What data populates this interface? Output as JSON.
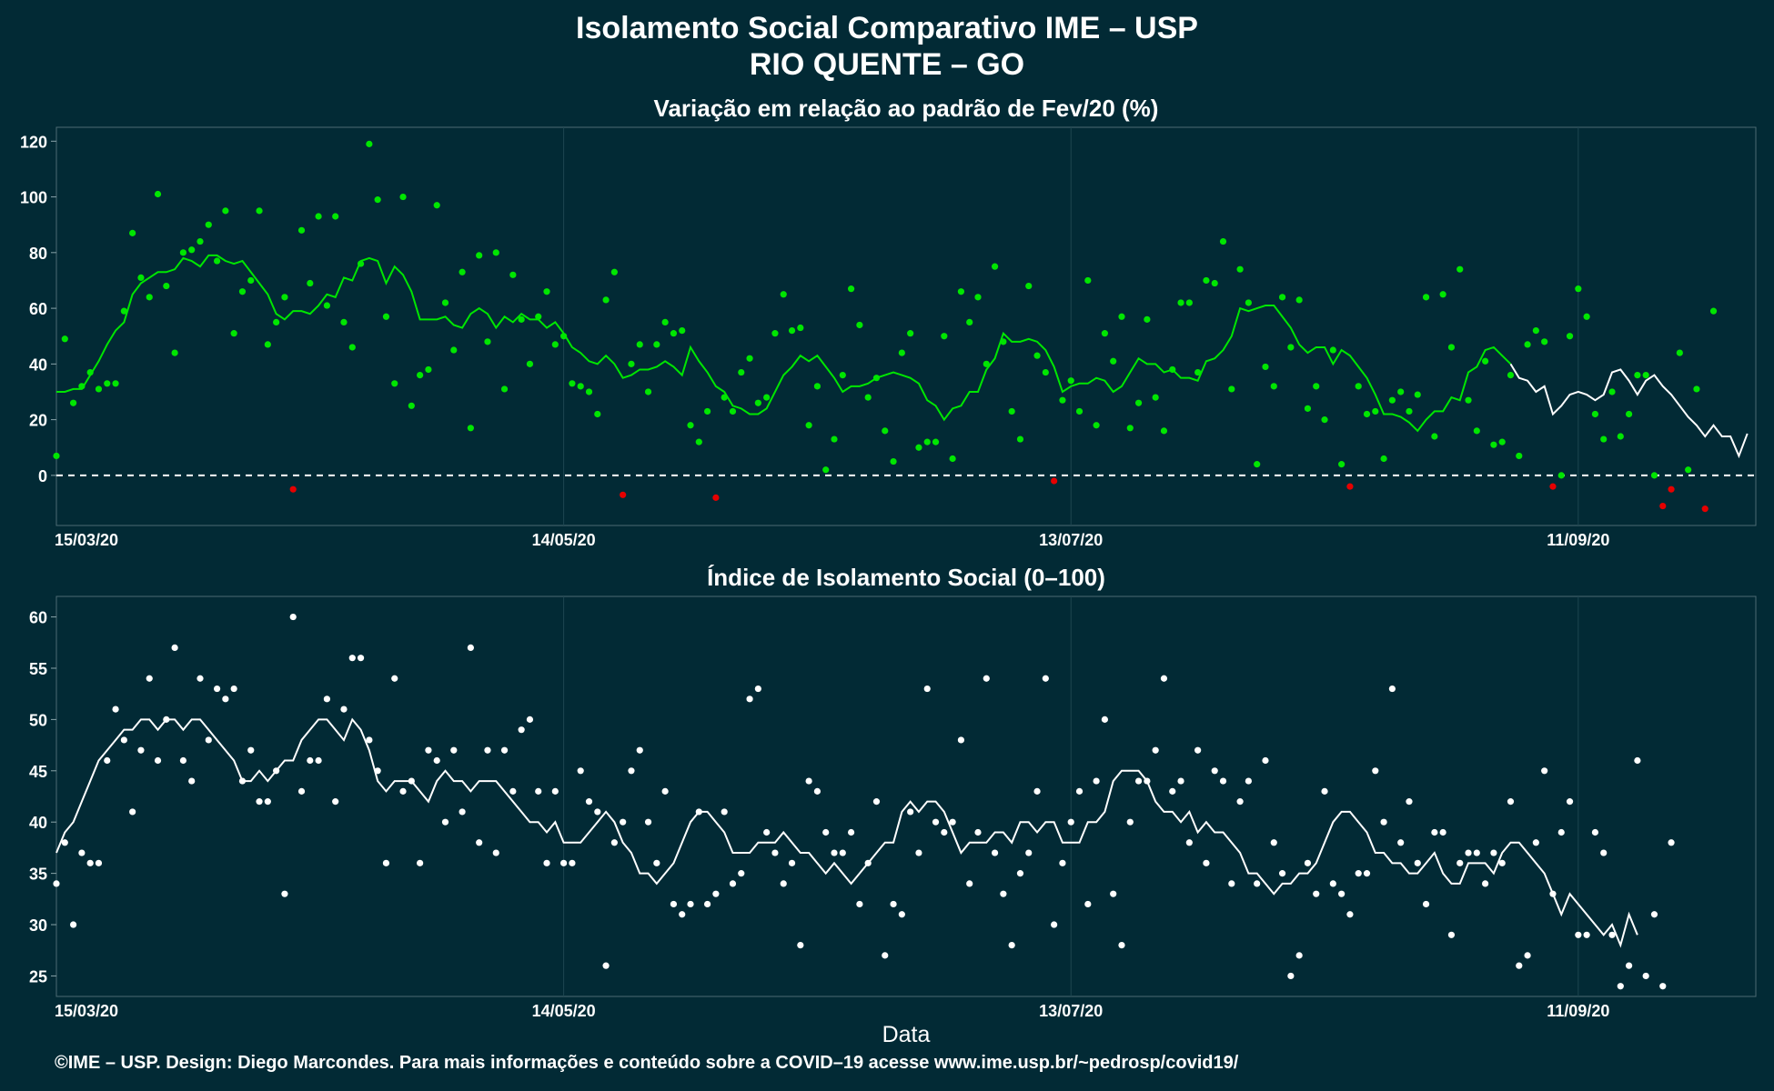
{
  "title_line1": "Isolamento Social Comparativo IME – USP",
  "title_line2": "RIO QUENTE – GO",
  "credit": "©IME – USP. Design: Diego Marcondes. Para mais informações e conteúdo sobre a COVID–19 acesse www.ime.usp.br/~pedrosp/covid19/",
  "chart_data": [
    {
      "type": "scatter",
      "title": "Variação em relação ao padrão de Fev/20 (%)",
      "xlabel": "",
      "ylabel": "",
      "x_range": [
        "2020-03-15",
        "2020-10-02"
      ],
      "x_tick_labels": [
        "15/03/20",
        "14/05/20",
        "13/07/20",
        "11/09/20"
      ],
      "ylim": [
        -18,
        125
      ],
      "y_ticks": [
        0,
        20,
        40,
        60,
        80,
        100,
        120
      ],
      "reference_line": 0,
      "grid": true,
      "point_color_positive": "#00e600",
      "point_color_negative": "#e60000",
      "line_color": "#00e600",
      "line_color_late": "#ffffff",
      "points": [
        7,
        49,
        26,
        32,
        37,
        31,
        33,
        33,
        59,
        87,
        71,
        64,
        101,
        68,
        44,
        80,
        81,
        84,
        90,
        77,
        95,
        51,
        66,
        70,
        95,
        47,
        55,
        64,
        -5,
        88,
        69,
        93,
        61,
        93,
        55,
        46,
        76,
        119,
        99,
        57,
        33,
        100,
        25,
        36,
        38,
        97,
        62,
        45,
        73,
        17,
        79,
        48,
        80,
        31,
        72,
        56,
        40,
        57,
        66,
        47,
        50,
        33,
        32,
        30,
        22,
        63,
        73,
        -7,
        40,
        47,
        30,
        47,
        55,
        51,
        52,
        18,
        12,
        23,
        -8,
        28,
        23,
        37,
        42,
        26,
        28,
        51,
        65,
        52,
        53,
        18,
        32,
        2,
        13,
        36,
        67,
        54,
        28,
        35,
        16,
        5,
        44,
        51,
        10,
        12,
        12,
        50,
        6,
        66,
        55,
        64,
        40,
        75,
        48,
        23,
        13,
        68,
        43,
        37,
        -2,
        27,
        34,
        23,
        70,
        18,
        51,
        41,
        57,
        17,
        26,
        56,
        28,
        16,
        38,
        62,
        62,
        37,
        70,
        69,
        84,
        31,
        74,
        62,
        4,
        39,
        32,
        64,
        46,
        63,
        24,
        32,
        20,
        45,
        4,
        -4,
        32,
        22,
        23,
        6,
        27,
        30,
        23,
        29,
        64,
        14,
        65,
        46,
        74,
        27,
        16,
        41,
        11,
        12,
        36,
        7,
        47,
        52,
        48,
        -4,
        0,
        50,
        67,
        57,
        22,
        13,
        30,
        14,
        22,
        36,
        36,
        0,
        -11,
        -5,
        44,
        2,
        31,
        -12,
        59
      ],
      "moving_average": [
        30,
        30,
        31,
        31,
        36,
        41,
        47,
        52,
        55,
        65,
        69,
        71,
        73,
        73,
        74,
        78,
        77,
        75,
        79,
        79,
        77,
        76,
        77,
        73,
        69,
        65,
        58,
        56,
        59,
        59,
        58,
        61,
        65,
        64,
        71,
        70,
        77,
        78,
        77,
        69,
        75,
        72,
        66,
        56,
        56,
        56,
        57,
        54,
        53,
        58,
        60,
        58,
        53,
        57,
        55,
        58,
        56,
        56,
        53,
        55,
        51,
        46,
        44,
        41,
        40,
        43,
        40,
        35,
        36,
        38,
        38,
        39,
        41,
        39,
        36,
        46,
        41,
        37,
        32,
        30,
        25,
        24,
        22,
        22,
        24,
        30,
        36,
        39,
        43,
        41,
        43,
        39,
        35,
        30,
        32,
        32,
        33,
        35,
        36,
        37,
        36,
        35,
        33,
        27,
        25,
        20,
        24,
        25,
        30,
        30,
        38,
        42,
        51,
        48,
        48,
        49,
        48,
        45,
        39,
        30,
        32,
        33,
        33,
        35,
        34,
        30,
        32,
        37,
        42,
        40,
        40,
        37,
        38,
        35,
        35,
        34,
        41,
        42,
        45,
        50,
        60,
        59,
        60,
        61,
        61,
        57,
        53,
        47,
        44,
        46,
        46,
        40,
        45,
        43,
        39,
        35,
        29,
        22,
        22,
        21,
        19,
        16,
        20,
        23,
        23,
        28,
        27,
        37,
        39,
        45,
        46,
        43,
        40,
        35,
        34,
        30,
        32,
        22,
        25,
        29,
        30,
        29,
        27,
        29,
        37,
        38,
        34,
        29,
        34,
        36,
        32,
        29,
        25,
        21,
        18,
        14,
        18,
        14,
        14,
        7,
        15
      ]
    },
    {
      "type": "scatter",
      "title": "Índice de Isolamento Social (0–100)",
      "xlabel": "Data",
      "ylabel": "",
      "x_range": [
        "2020-03-15",
        "2020-10-02"
      ],
      "x_tick_labels": [
        "15/03/20",
        "14/05/20",
        "13/07/20",
        "11/09/20"
      ],
      "ylim": [
        23,
        62
      ],
      "y_ticks": [
        25,
        30,
        35,
        40,
        45,
        50,
        55,
        60
      ],
      "grid": true,
      "point_color": "#ffffff",
      "line_color": "#ffffff",
      "points": [
        34,
        38,
        30,
        37,
        36,
        36,
        46,
        51,
        48,
        41,
        47,
        54,
        46,
        50,
        57,
        46,
        44,
        54,
        48,
        53,
        52,
        53,
        44,
        47,
        42,
        42,
        45,
        33,
        60,
        43,
        46,
        46,
        52,
        42,
        51,
        56,
        56,
        48,
        45,
        36,
        54,
        43,
        44,
        36,
        47,
        46,
        40,
        47,
        41,
        57,
        38,
        47,
        37,
        47,
        43,
        49,
        50,
        43,
        36,
        43,
        36,
        36,
        45,
        42,
        41,
        26,
        38,
        40,
        45,
        47,
        40,
        36,
        43,
        32,
        31,
        32,
        41,
        32,
        33,
        41,
        34,
        35,
        52,
        53,
        39,
        37,
        34,
        36,
        28,
        44,
        43,
        39,
        37,
        37,
        39,
        32,
        36,
        42,
        27,
        32,
        31,
        41,
        37,
        53,
        40,
        39,
        40,
        48,
        34,
        39,
        54,
        37,
        33,
        28,
        35,
        37,
        43,
        54,
        30,
        36,
        40,
        43,
        32,
        44,
        50,
        33,
        28,
        40,
        44,
        44,
        47,
        54,
        43,
        44,
        38,
        47,
        36,
        45,
        44,
        34,
        42,
        44,
        34,
        46,
        38,
        35,
        25,
        27,
        36,
        33,
        43,
        34,
        33,
        31,
        35,
        35,
        45,
        40,
        53,
        38,
        42,
        36,
        32,
        39,
        39,
        29,
        36,
        37,
        37,
        34,
        37,
        36,
        42,
        26,
        27,
        38,
        45,
        33,
        39,
        42,
        29,
        29,
        39,
        37,
        29,
        24,
        26,
        46,
        25,
        31,
        24,
        38
      ],
      "moving_average": [
        37,
        39,
        40,
        42,
        44,
        46,
        47,
        48,
        49,
        49,
        50,
        50,
        49,
        50,
        50,
        49,
        50,
        50,
        49,
        48,
        47,
        46,
        44,
        44,
        45,
        44,
        45,
        46,
        46,
        48,
        49,
        50,
        50,
        49,
        48,
        50,
        49,
        47,
        44,
        43,
        44,
        44,
        44,
        43,
        42,
        44,
        45,
        44,
        44,
        43,
        44,
        44,
        44,
        43,
        42,
        41,
        40,
        40,
        39,
        40,
        38,
        38,
        38,
        39,
        40,
        41,
        40,
        38,
        37,
        35,
        35,
        34,
        35,
        36,
        38,
        40,
        41,
        41,
        40,
        39,
        37,
        37,
        37,
        38,
        38,
        38,
        39,
        38,
        37,
        37,
        36,
        35,
        36,
        35,
        34,
        35,
        36,
        37,
        38,
        38,
        41,
        42,
        41,
        42,
        42,
        41,
        39,
        37,
        38,
        38,
        38,
        39,
        39,
        38,
        40,
        40,
        39,
        40,
        40,
        38,
        38,
        38,
        40,
        40,
        41,
        44,
        45,
        45,
        45,
        44,
        42,
        41,
        41,
        40,
        41,
        39,
        40,
        39,
        39,
        38,
        37,
        35,
        35,
        34,
        33,
        34,
        34,
        35,
        35,
        36,
        38,
        40,
        41,
        41,
        40,
        39,
        37,
        37,
        36,
        36,
        35,
        35,
        36,
        37,
        35,
        34,
        34,
        36,
        36,
        36,
        35,
        37,
        38,
        38,
        37,
        36,
        35,
        33,
        31,
        33,
        32,
        31,
        30,
        29,
        30,
        28,
        31,
        29
      ]
    }
  ]
}
